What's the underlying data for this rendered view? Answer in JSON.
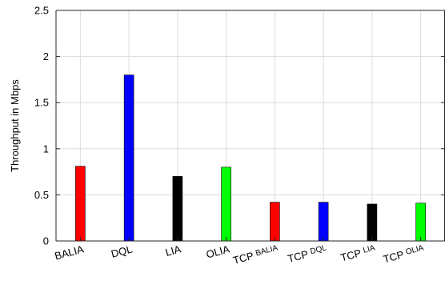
{
  "chart_data": {
    "type": "bar",
    "title": "",
    "xlabel": "",
    "ylabel": "Throughput in Mbps",
    "ylim": [
      0,
      2.5
    ],
    "yticks": [
      0,
      0.5,
      1,
      1.5,
      2,
      2.5
    ],
    "grid": true,
    "categories": [
      {
        "main": "BALIA",
        "sub": ""
      },
      {
        "main": "DQL",
        "sub": ""
      },
      {
        "main": "LIA",
        "sub": ""
      },
      {
        "main": "OLIA",
        "sub": ""
      },
      {
        "main": "TCP",
        "sub": "BALIA"
      },
      {
        "main": "TCP",
        "sub": "DQL"
      },
      {
        "main": "TCP",
        "sub": "LIA"
      },
      {
        "main": "TCP",
        "sub": "OLIA"
      }
    ],
    "values": [
      0.81,
      1.8,
      0.7,
      0.8,
      0.42,
      0.42,
      0.4,
      0.41
    ],
    "colors": [
      "#ff0000",
      "#0000ff",
      "#000000",
      "#00ff00",
      "#ff0000",
      "#0000ff",
      "#000000",
      "#00ff00"
    ]
  }
}
